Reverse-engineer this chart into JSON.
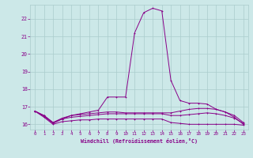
{
  "xlabel": "Windchill (Refroidissement éolien,°C)",
  "background_color": "#cce8e8",
  "line_color": "#880088",
  "grid_color": "#aacccc",
  "xlim": [
    -0.5,
    23.5
  ],
  "ylim": [
    15.7,
    22.8
  ],
  "yticks": [
    16,
    17,
    18,
    19,
    20,
    21,
    22
  ],
  "xticks": [
    0,
    1,
    2,
    3,
    4,
    5,
    6,
    7,
    8,
    9,
    10,
    11,
    12,
    13,
    14,
    15,
    16,
    17,
    18,
    19,
    20,
    21,
    22,
    23
  ],
  "curves": [
    [
      16.75,
      16.4,
      16.0,
      16.15,
      16.2,
      16.25,
      16.25,
      16.3,
      16.3,
      16.3,
      16.3,
      16.3,
      16.3,
      16.3,
      16.3,
      16.1,
      16.05,
      16.0,
      16.0,
      16.0,
      16.0,
      16.0,
      16.0,
      15.95
    ],
    [
      16.75,
      16.5,
      16.1,
      16.3,
      16.4,
      16.45,
      16.5,
      16.55,
      16.6,
      16.6,
      16.6,
      16.6,
      16.6,
      16.6,
      16.6,
      16.5,
      16.5,
      16.55,
      16.6,
      16.65,
      16.6,
      16.5,
      16.35,
      16.05
    ],
    [
      16.75,
      16.5,
      16.1,
      16.35,
      16.5,
      16.55,
      16.6,
      16.65,
      16.7,
      16.7,
      16.65,
      16.65,
      16.65,
      16.65,
      16.65,
      16.65,
      16.75,
      16.85,
      16.9,
      16.9,
      16.85,
      16.7,
      16.5,
      16.1
    ],
    [
      16.75,
      16.45,
      16.05,
      16.3,
      16.5,
      16.6,
      16.7,
      16.8,
      17.55,
      17.55,
      17.55,
      21.2,
      22.35,
      22.6,
      22.45,
      18.5,
      17.35,
      17.2,
      17.2,
      17.15,
      16.85,
      16.7,
      16.4,
      16.0
    ]
  ]
}
